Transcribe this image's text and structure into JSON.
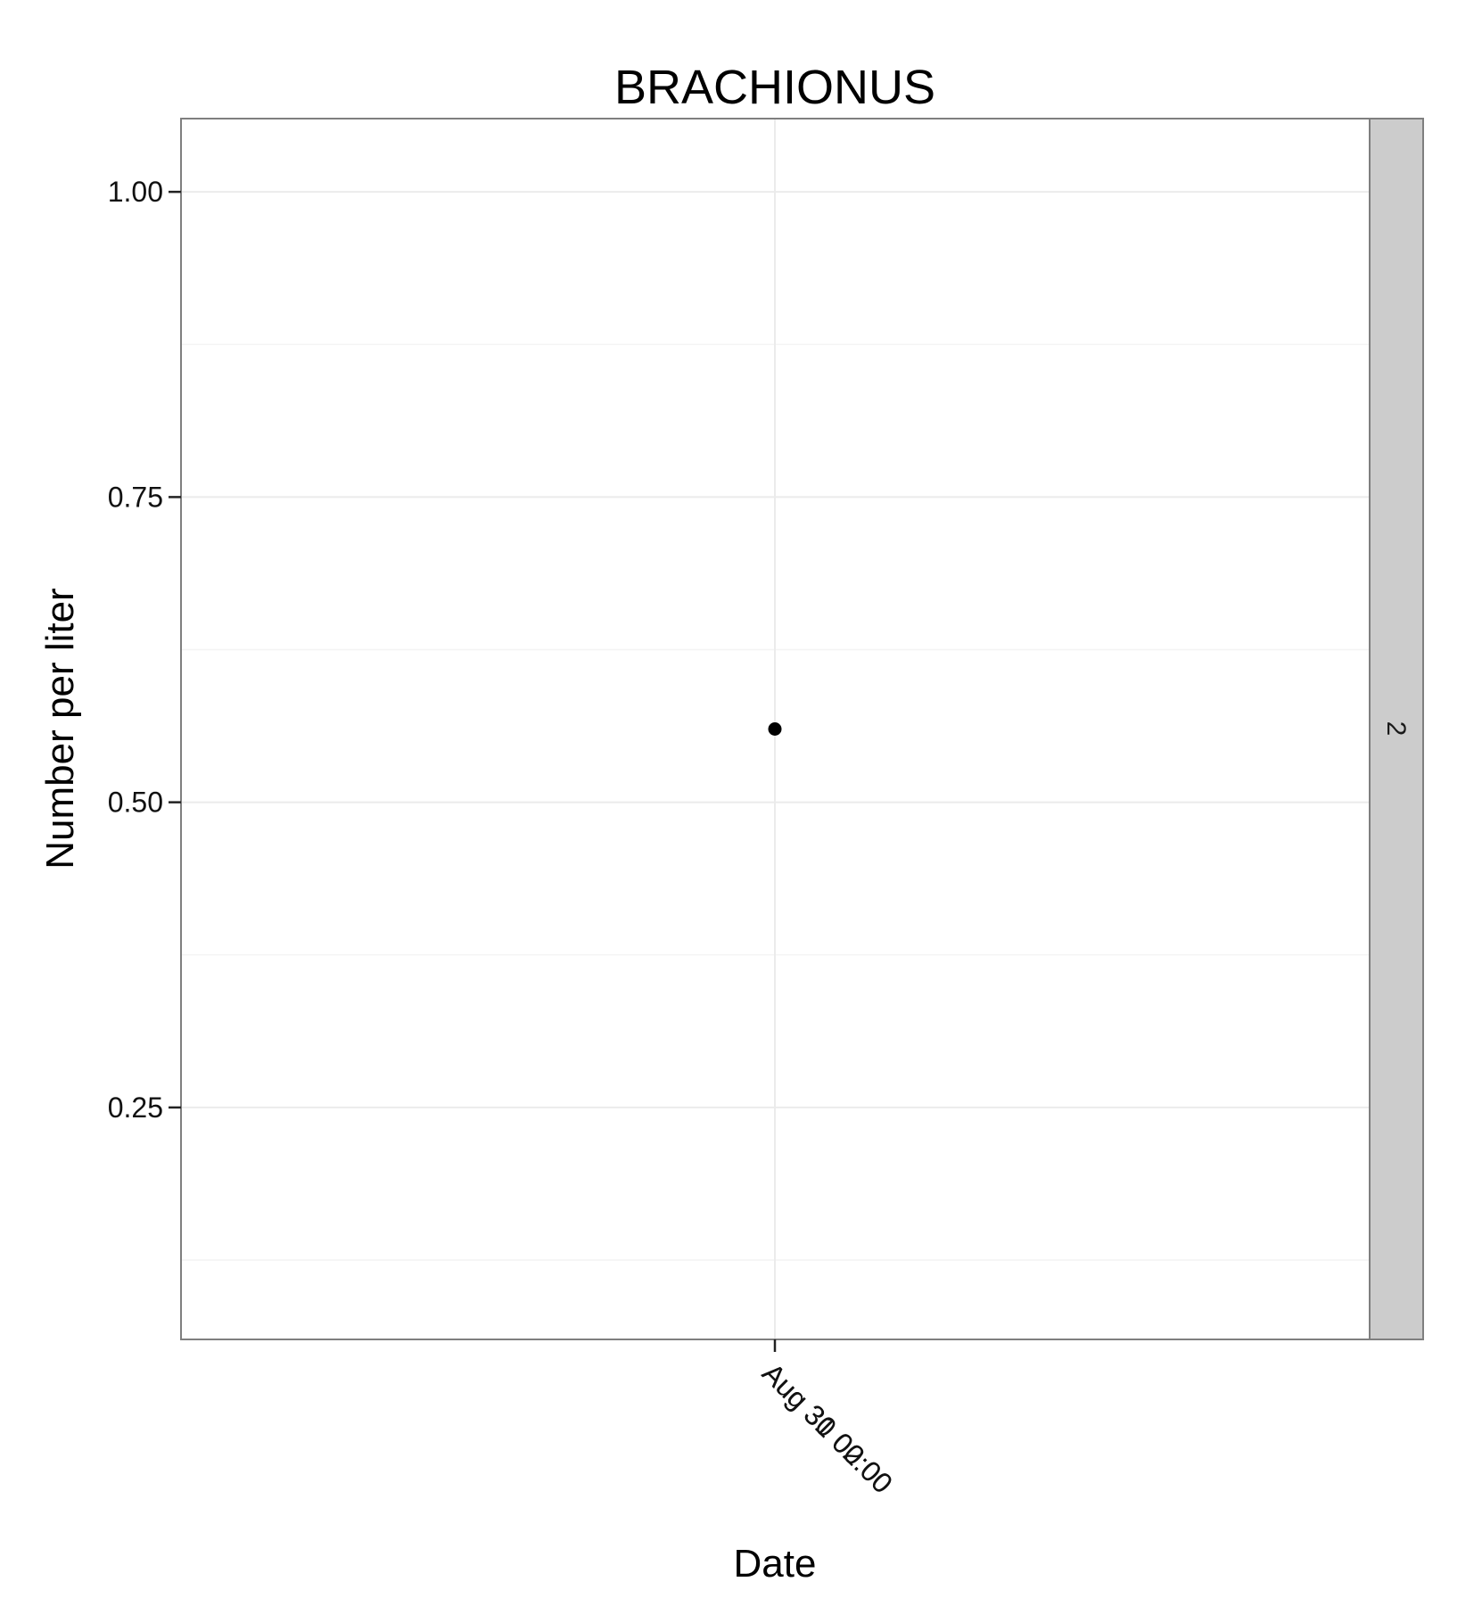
{
  "chart_data": {
    "type": "scatter",
    "title": "BRACHIONUS",
    "xlabel": "Date",
    "ylabel": "Number per liter",
    "x_tick_labels": [
      "Aug 30 00:00",
      "Aug 31 02:00"
    ],
    "y_ticks": [
      0.25,
      0.5,
      0.75,
      1.0
    ],
    "y_tick_labels": [
      "0.25",
      "0.50",
      "0.75",
      "1.00"
    ],
    "ylim": [
      0.06,
      1.06
    ],
    "grid": true,
    "facet_label": "2",
    "series": [
      {
        "points": [
          {
            "x": "Aug 31",
            "y": 0.56
          }
        ]
      }
    ],
    "colors": {
      "point": "#000000",
      "panel_border": "#7f7f7f",
      "grid": "#ebebeb",
      "strip_fill": "#cccccc"
    }
  }
}
